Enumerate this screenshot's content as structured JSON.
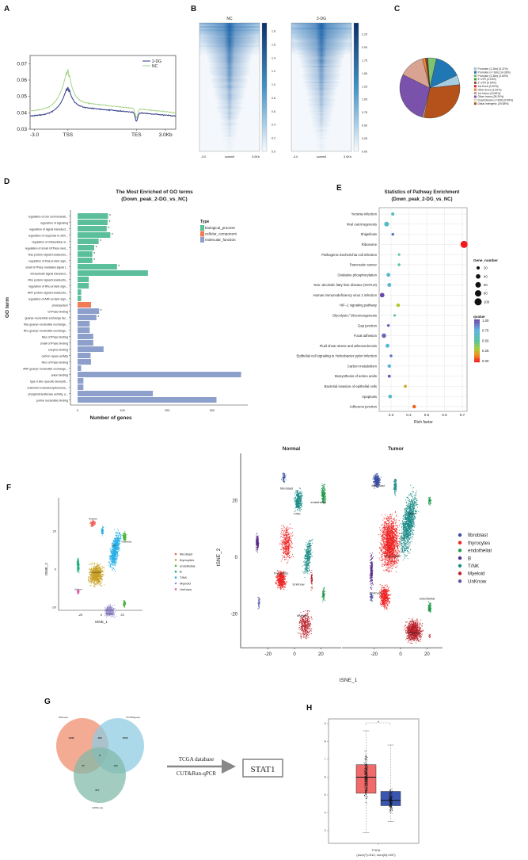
{
  "panel_letters": [
    "A",
    "B",
    "C",
    "D",
    "E",
    "F",
    "G",
    "H"
  ],
  "chart_data": [
    {
      "id": "A",
      "type": "line",
      "xticks": [
        "-3.0",
        "TSS",
        "TES",
        "3.0Kb"
      ],
      "yticks": [
        "0.03",
        "0.04",
        "0.05",
        "0.06",
        "0.07"
      ],
      "ylim": [
        0.03,
        0.075
      ],
      "legend_position": "top-right",
      "series": [
        {
          "name": "2-DG",
          "color": "#2e3a87",
          "values": [
            0.038,
            0.058,
            0.035,
            0.038
          ]
        },
        {
          "name": "NC",
          "color": "#a6d48a",
          "values": [
            0.041,
            0.07,
            0.037,
            0.04
          ]
        }
      ]
    },
    {
      "id": "B",
      "type": "heatmap",
      "panels": [
        {
          "title": "NC",
          "colorbar_ticks": [
            "1.8",
            "1.6",
            "1.4",
            "1.2",
            "1.0",
            "0.8",
            "0.6",
            "0.4",
            "0.2",
            "0.0"
          ]
        },
        {
          "title": "2-DG",
          "colorbar_ticks": [
            "2.25",
            "2.00",
            "1.75",
            "1.50",
            "1.25",
            "1.00",
            "0.75",
            "0.50",
            "0.25",
            "0.00"
          ]
        }
      ],
      "xticks": [
        "-3.0",
        "summit",
        "3.0Kb"
      ],
      "colormap": [
        "#f7fbff",
        "#08306b"
      ]
    },
    {
      "id": "C",
      "type": "pie",
      "legend_position": "right",
      "slices": [
        {
          "label": "Promoter (1-2kb) (5.11%)",
          "value": 5.11,
          "color": "#a6cee3"
        },
        {
          "label": "Promoter (<=1kb) (14.36%)",
          "value": 14.36,
          "color": "#1f78b4"
        },
        {
          "label": "Promoter (2-3kb) (4.60%)",
          "value": 4.6,
          "color": "#7fc46e"
        },
        {
          "label": "5' UTR (0.15%)",
          "value": 0.15,
          "color": "#33a02c"
        },
        {
          "label": "3' UTR (0.90%)",
          "value": 0.9,
          "color": "#8c4a2a"
        },
        {
          "label": "1st Exon (0.20%)",
          "value": 0.2,
          "color": "#e31a1c"
        },
        {
          "label": "Other Exon (1.52%)",
          "value": 1.52,
          "color": "#f4872f"
        },
        {
          "label": "1st Intron (13.59%)",
          "value": 13.59,
          "color": "#d9a393"
        },
        {
          "label": "Other Intron (28.20%)",
          "value": 28.2,
          "color": "#7b52ab"
        },
        {
          "label": "Downstream (<=300) (0.59%)",
          "value": 0.59,
          "color": "#f5f0b0"
        },
        {
          "label": "Distal Intergenic (29.68%)",
          "value": 29.68,
          "color": "#b5521c"
        }
      ]
    },
    {
      "id": "D",
      "type": "bar",
      "orientation": "horizontal",
      "title": "The Most Enriched of GO terms",
      "subtitle": "(Down_peak_2-DG_vs_NC)",
      "xlabel": "Number of genes",
      "ylabel": "GO term",
      "xticks": [
        "0",
        "100",
        "200",
        "300"
      ],
      "xlim": [
        0,
        380
      ],
      "legend_title": "Type",
      "legend_position": "top-right",
      "types": [
        {
          "name": "biological_process",
          "color": "#5bbf9b"
        },
        {
          "name": "cellular_component",
          "color": "#f07b54"
        },
        {
          "name": "molecular_function",
          "color": "#8da0cb"
        }
      ],
      "categories": [
        "regulation of cell communicati...",
        "regulation of signaling",
        "regulation of signal transduct...",
        "regulation of response to stim...",
        "regulation of intracellular si...",
        "regulation of small GTPase med...",
        "Ras protein signal transductio...",
        "regulation of Ras protein sign...",
        "small GTPase mediated signal t...",
        "intracellular signal transduct...",
        "Rho protein signal transductio...",
        "regulation of Rho protein sign...",
        "ARF protein signal transductio...",
        "regulation of ARF protein sign...",
        "photosystem",
        "GTPase binding",
        "guanyl−nucleotide exchange fac...",
        "Ras guanyl−nucleotide exchange...",
        "Rho guanyl−nucleotide exchange...",
        "Ras GTPase binding",
        "small GTPase binding",
        "enzyme binding",
        "carbon−lyase activity",
        "Rho GTPase binding",
        "ARF guanyl−nucleotide exchange...",
        "anion binding",
        "type II site−specific deoxyrib...",
        "restriction endodeoxyribonucle...",
        "phosphotransferase activity, a...",
        "purine nucleotide binding"
      ],
      "values": [
        68,
        67,
        65,
        73,
        47,
        37,
        33,
        33,
        88,
        157,
        25,
        25,
        8,
        8,
        30,
        48,
        42,
        27,
        27,
        35,
        35,
        58,
        29,
        30,
        8,
        365,
        13,
        13,
        168,
        310
      ],
      "type_index": [
        0,
        0,
        0,
        0,
        0,
        0,
        0,
        0,
        0,
        0,
        0,
        0,
        0,
        0,
        1,
        2,
        2,
        2,
        2,
        2,
        2,
        2,
        2,
        2,
        2,
        2,
        2,
        2,
        2,
        2
      ],
      "significant": [
        true,
        true,
        true,
        true,
        true,
        true,
        true,
        true,
        true,
        false,
        false,
        false,
        false,
        false,
        false,
        true,
        true,
        false,
        false,
        false,
        false,
        false,
        false,
        false,
        false,
        false,
        false,
        false,
        false,
        false
      ],
      "significance_mark": "*"
    },
    {
      "id": "E",
      "type": "scatter",
      "title": "Statistics of Pathway Enrichment",
      "subtitle": "(Down_peak_2-DG_vs_NC)",
      "xlabel": "Rich factor",
      "xticks": [
        "0.3",
        "0.4",
        "0.5",
        "0.6",
        "0.7"
      ],
      "xlim": [
        0.23,
        0.74
      ],
      "grid": true,
      "size_legend_title": "Gene_number",
      "size_legend": [
        20,
        40,
        60,
        80,
        100
      ],
      "color_legend_title": "qvalue",
      "color_legend_ticks": [
        "1.00",
        "0.75",
        "0.50",
        "0.25",
        "0.00"
      ],
      "pathways": [
        {
          "name": "Yersinia infection",
          "rich_factor": 0.31,
          "gene_number": 20,
          "qvalue": 0.6
        },
        {
          "name": "Viral carcinogenesis",
          "rich_factor": 0.275,
          "gene_number": 45,
          "qvalue": 0.62
        },
        {
          "name": "Shigellosis",
          "rich_factor": 0.31,
          "gene_number": 15,
          "qvalue": 0.9
        },
        {
          "name": "Ribosome",
          "rich_factor": 0.71,
          "gene_number": 100,
          "qvalue": 0.0
        },
        {
          "name": "Pathogenic Escherichia coli infection",
          "rich_factor": 0.345,
          "gene_number": 12,
          "qvalue": 0.5
        },
        {
          "name": "Pancreatic cancer",
          "rich_factor": 0.345,
          "gene_number": 15,
          "qvalue": 0.55
        },
        {
          "name": "Oxidative phosphorylation",
          "rich_factor": 0.285,
          "gene_number": 30,
          "qvalue": 0.68
        },
        {
          "name": "Non−alcoholic fatty liver disease (NAFLD)",
          "rich_factor": 0.29,
          "gene_number": 30,
          "qvalue": 0.7
        },
        {
          "name": "Human immunodeficiency virus 1 infection",
          "rich_factor": 0.25,
          "gene_number": 40,
          "qvalue": 1.0
        },
        {
          "name": "HIF−1 signaling pathway",
          "rich_factor": 0.34,
          "gene_number": 25,
          "qvalue": 0.3
        },
        {
          "name": "Glycolysis / Gluconeogenesis",
          "rich_factor": 0.32,
          "gene_number": 12,
          "qvalue": 0.5
        },
        {
          "name": "Gap junction",
          "rich_factor": 0.285,
          "gene_number": 15,
          "qvalue": 0.95
        },
        {
          "name": "Focal adhesion",
          "rich_factor": 0.26,
          "gene_number": 40,
          "qvalue": 0.92
        },
        {
          "name": "Fluid shear stress and atherosclerosis",
          "rich_factor": 0.28,
          "gene_number": 30,
          "qvalue": 0.7
        },
        {
          "name": "Epithelial cell signaling in Helicobacter pylori infection",
          "rich_factor": 0.3,
          "gene_number": 15,
          "qvalue": 0.9
        },
        {
          "name": "Carbon metabolism",
          "rich_factor": 0.29,
          "gene_number": 25,
          "qvalue": 0.7
        },
        {
          "name": "Biosynthesis of amino acids",
          "rich_factor": 0.29,
          "gene_number": 18,
          "qvalue": 0.95
        },
        {
          "name": "Bacterial invasion of epithelial cells",
          "rich_factor": 0.38,
          "gene_number": 18,
          "qvalue": 0.22
        },
        {
          "name": "Apoptosis",
          "rich_factor": 0.295,
          "gene_number": 28,
          "qvalue": 0.65
        },
        {
          "name": "Adherens junction",
          "rich_factor": 0.43,
          "gene_number": 25,
          "qvalue": 0.1
        }
      ]
    },
    {
      "id": "F",
      "type": "scatter",
      "xlabel": "tSNE_1",
      "ylabel": "tSNE_2",
      "xticks": [
        "-20",
        "0",
        "20"
      ],
      "yticks": [
        "20",
        "0",
        "-20"
      ],
      "left_plot": {
        "legend": [
          {
            "name": "fibroblast",
            "color": "#f0605a"
          },
          {
            "name": "thyrocytes",
            "color": "#c9a227"
          },
          {
            "name": "endothelial",
            "color": "#4bb43a"
          },
          {
            "name": "B",
            "color": "#1fae7e"
          },
          {
            "name": "T/NK",
            "color": "#2ab0e6"
          },
          {
            "name": "Myeloid",
            "color": "#9b8fd4"
          },
          {
            "name": "UnKnow",
            "color": "#e256a8"
          }
        ],
        "cluster_labels": [
          "fibroblast",
          "thyrocytes",
          "endothelial",
          "T/NK",
          "Myeloid",
          "UnKnow"
        ]
      },
      "right_plot": {
        "facets": [
          "Normal",
          "Tumor"
        ],
        "legend": [
          {
            "name": "fibroblast",
            "color": "#3a4ea0"
          },
          {
            "name": "thyrocytes",
            "color": "#ee2424"
          },
          {
            "name": "endothelial",
            "color": "#1e9a4a"
          },
          {
            "name": "B",
            "color": "#5a2a86"
          },
          {
            "name": "T/NK",
            "color": "#1c8c88"
          },
          {
            "name": "Myeloid",
            "color": "#b8202a"
          },
          {
            "name": "UnKnow",
            "color": "#5c5aa8"
          }
        ],
        "normal_labels": [
          "fibroblast",
          "endothelial",
          "T/NK",
          "thyrocytes",
          "UnKnow",
          "Myeloid"
        ],
        "tumor_labels": [
          "fibroblast",
          "T/NK",
          "thyrocytes",
          "UnKnow",
          "endothelial",
          "Myeloid"
        ]
      }
    },
    {
      "id": "G",
      "type": "venn",
      "sets": [
        {
          "name": "RNA-seq",
          "color": "#ee8a6a"
        },
        {
          "name": "CUT&Tag-seq",
          "color": "#8ccbe0"
        },
        {
          "name": "scRNA-seq",
          "color": "#7fb8a8"
        }
      ],
      "counts": {
        "a_only": "1236",
        "ab": "166",
        "b_only": "1518",
        "abc": "9",
        "ac": "47",
        "bc": "143",
        "c_only": "877"
      },
      "arrow_top_text": "TCGA database",
      "arrow_bottom_text": "CUT&Run-qPCR",
      "result": "STAT1"
    },
    {
      "id": "H",
      "type": "box",
      "yticks": [
        "9",
        "8",
        "7",
        "6",
        "5",
        "4",
        "3"
      ],
      "ylim": [
        2.7,
        9.2
      ],
      "xlabel": "THCA",
      "xsublabel": "(num(T)=512; num(N)=337)",
      "significance_mark": "*",
      "groups": [
        {
          "name": "T",
          "color": "#f06a6a",
          "q1": 5.1,
          "median": 6.0,
          "q3": 6.7,
          "min": 2.9,
          "max": 8.6
        },
        {
          "name": "N",
          "color": "#3a56b0",
          "q1": 4.4,
          "median": 4.7,
          "q3": 5.2,
          "min": 3.5,
          "max": 7.8
        }
      ]
    }
  ]
}
